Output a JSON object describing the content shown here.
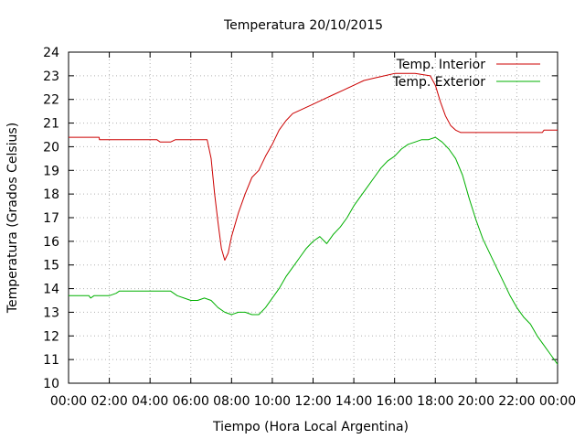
{
  "chart_data": {
    "type": "line",
    "title": "Temperatura 20/10/2015",
    "xlabel": "Tiempo (Hora Local Argentina)",
    "ylabel": "Temperatura (Grados Celsius)",
    "xlim": [
      "00:00",
      "24:00"
    ],
    "ylim": [
      10,
      24
    ],
    "x_ticks": [
      "00:00",
      "02:00",
      "04:00",
      "06:00",
      "08:00",
      "10:00",
      "12:00",
      "14:00",
      "16:00",
      "18:00",
      "20:00",
      "22:00",
      "00:00"
    ],
    "y_ticks": [
      "10",
      "11",
      "12",
      "13",
      "14",
      "15",
      "16",
      "17",
      "18",
      "19",
      "20",
      "21",
      "22",
      "23",
      "24"
    ],
    "grid": true,
    "legend_position": "top-right",
    "series": [
      {
        "name": "Temp. Interior",
        "color": "#cc0000",
        "points": [
          [
            "00:00",
            20.4
          ],
          [
            "01:30",
            20.4
          ],
          [
            "01:31",
            20.3
          ],
          [
            "04:20",
            20.3
          ],
          [
            "04:30",
            20.2
          ],
          [
            "05:00",
            20.2
          ],
          [
            "05:15",
            20.3
          ],
          [
            "06:48",
            20.3
          ],
          [
            "07:00",
            19.5
          ],
          [
            "07:10",
            18.0
          ],
          [
            "07:20",
            16.8
          ],
          [
            "07:30",
            15.7
          ],
          [
            "07:40",
            15.2
          ],
          [
            "07:50",
            15.5
          ],
          [
            "08:00",
            16.2
          ],
          [
            "08:20",
            17.2
          ],
          [
            "08:40",
            18.0
          ],
          [
            "09:00",
            18.7
          ],
          [
            "09:20",
            19.0
          ],
          [
            "09:40",
            19.6
          ],
          [
            "10:00",
            20.1
          ],
          [
            "10:20",
            20.7
          ],
          [
            "10:40",
            21.1
          ],
          [
            "11:00",
            21.4
          ],
          [
            "11:30",
            21.6
          ],
          [
            "12:00",
            21.8
          ],
          [
            "12:30",
            22.0
          ],
          [
            "13:00",
            22.2
          ],
          [
            "13:30",
            22.4
          ],
          [
            "14:00",
            22.6
          ],
          [
            "14:30",
            22.8
          ],
          [
            "15:00",
            22.9
          ],
          [
            "15:30",
            23.0
          ],
          [
            "16:00",
            23.1
          ],
          [
            "17:00",
            23.1
          ],
          [
            "17:45",
            23.0
          ],
          [
            "18:00",
            22.6
          ],
          [
            "18:15",
            21.9
          ],
          [
            "18:30",
            21.3
          ],
          [
            "18:45",
            20.9
          ],
          [
            "19:00",
            20.7
          ],
          [
            "19:15",
            20.6
          ],
          [
            "23:15",
            20.6
          ],
          [
            "23:20",
            20.7
          ],
          [
            "24:00",
            20.7
          ]
        ]
      },
      {
        "name": "Temp. Exterior",
        "color": "#00b000",
        "points": [
          [
            "00:00",
            13.7
          ],
          [
            "01:00",
            13.7
          ],
          [
            "01:05",
            13.6
          ],
          [
            "01:15",
            13.7
          ],
          [
            "02:00",
            13.7
          ],
          [
            "02:20",
            13.8
          ],
          [
            "02:30",
            13.9
          ],
          [
            "04:00",
            13.9
          ],
          [
            "05:00",
            13.9
          ],
          [
            "05:20",
            13.7
          ],
          [
            "05:40",
            13.6
          ],
          [
            "06:00",
            13.5
          ],
          [
            "06:20",
            13.5
          ],
          [
            "06:40",
            13.6
          ],
          [
            "07:00",
            13.5
          ],
          [
            "07:20",
            13.2
          ],
          [
            "07:40",
            13.0
          ],
          [
            "08:00",
            12.9
          ],
          [
            "08:20",
            13.0
          ],
          [
            "08:40",
            13.0
          ],
          [
            "09:00",
            12.9
          ],
          [
            "09:20",
            12.9
          ],
          [
            "09:40",
            13.2
          ],
          [
            "10:00",
            13.6
          ],
          [
            "10:20",
            14.0
          ],
          [
            "10:40",
            14.5
          ],
          [
            "11:00",
            14.9
          ],
          [
            "11:20",
            15.3
          ],
          [
            "11:40",
            15.7
          ],
          [
            "12:00",
            16.0
          ],
          [
            "12:20",
            16.2
          ],
          [
            "12:40",
            15.9
          ],
          [
            "13:00",
            16.3
          ],
          [
            "13:20",
            16.6
          ],
          [
            "13:40",
            17.0
          ],
          [
            "14:00",
            17.5
          ],
          [
            "14:20",
            17.9
          ],
          [
            "14:40",
            18.3
          ],
          [
            "15:00",
            18.7
          ],
          [
            "15:20",
            19.1
          ],
          [
            "15:40",
            19.4
          ],
          [
            "16:00",
            19.6
          ],
          [
            "16:20",
            19.9
          ],
          [
            "16:40",
            20.1
          ],
          [
            "17:00",
            20.2
          ],
          [
            "17:20",
            20.3
          ],
          [
            "17:40",
            20.3
          ],
          [
            "18:00",
            20.4
          ],
          [
            "18:20",
            20.2
          ],
          [
            "18:40",
            19.9
          ],
          [
            "19:00",
            19.5
          ],
          [
            "19:20",
            18.8
          ],
          [
            "19:40",
            17.8
          ],
          [
            "20:00",
            16.9
          ],
          [
            "20:20",
            16.1
          ],
          [
            "20:40",
            15.5
          ],
          [
            "21:00",
            14.9
          ],
          [
            "21:20",
            14.3
          ],
          [
            "21:40",
            13.7
          ],
          [
            "22:00",
            13.2
          ],
          [
            "22:20",
            12.8
          ],
          [
            "22:40",
            12.5
          ],
          [
            "23:00",
            12.0
          ],
          [
            "23:20",
            11.6
          ],
          [
            "23:40",
            11.2
          ],
          [
            "24:00",
            10.8
          ]
        ]
      }
    ]
  }
}
